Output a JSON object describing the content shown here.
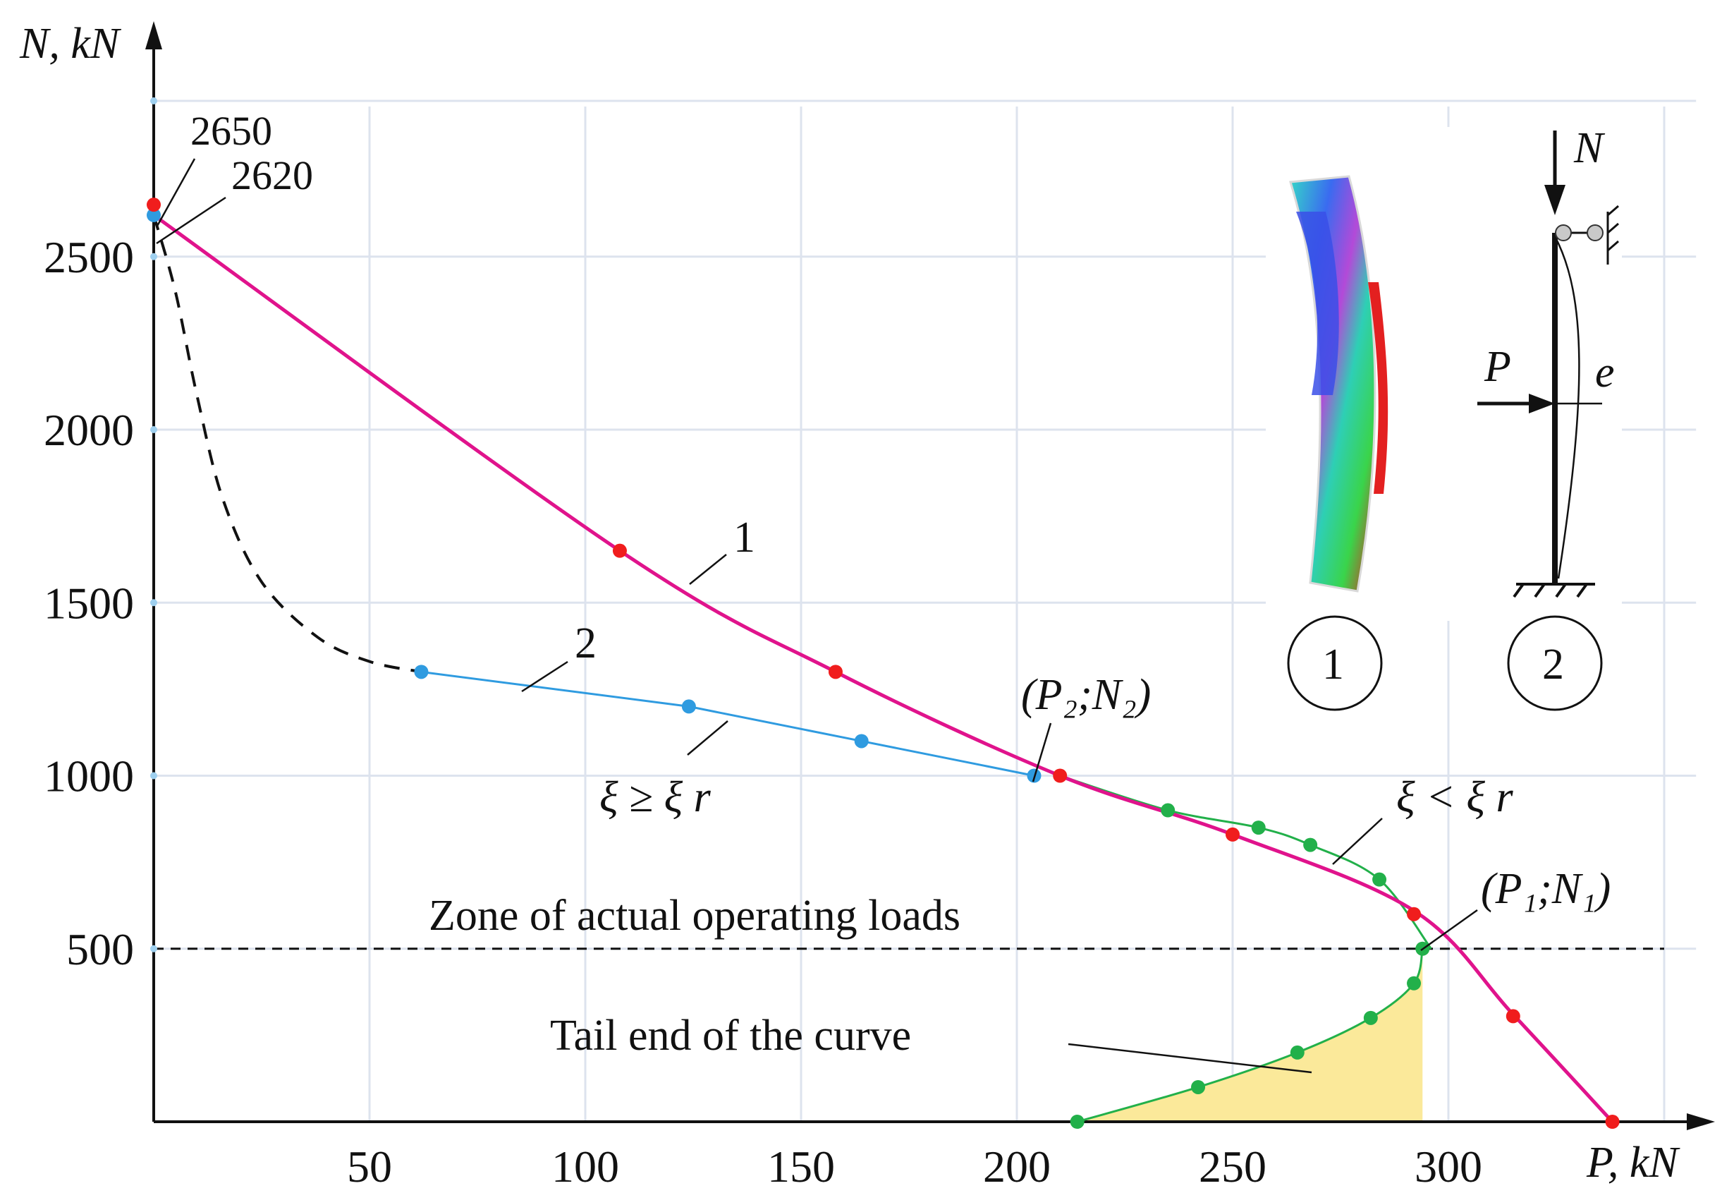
{
  "chart_data": {
    "type": "line",
    "xlabel": "P, kN",
    "ylabel": "N, kN",
    "xlim": [
      0,
      360
    ],
    "ylim": [
      0,
      2950
    ],
    "xticks": [
      50,
      100,
      150,
      200,
      250,
      300
    ],
    "yticks": [
      500,
      1000,
      1500,
      2000,
      2500
    ],
    "grid": true,
    "colors": {
      "curve1": "#e0138c",
      "curve1_points": "#f01d1d",
      "curve2": "#2f9be0",
      "green": "#22b04a",
      "dashed": "#111111",
      "zone_fill": "#fbe99a"
    },
    "series": [
      {
        "name": "1",
        "style": "pink-smooth",
        "points": [
          [
            0,
            2620
          ],
          [
            108,
            1650
          ],
          [
            158,
            1300
          ],
          [
            210,
            1000
          ],
          [
            250,
            830
          ],
          [
            292,
            610
          ],
          [
            315,
            310
          ],
          [
            338,
            0
          ]
        ],
        "markers": [
          [
            0,
            2650
          ],
          [
            108,
            1650
          ],
          [
            158,
            1300
          ],
          [
            210,
            1000
          ],
          [
            250,
            830
          ],
          [
            292,
            600
          ],
          [
            315,
            305
          ],
          [
            338,
            0
          ]
        ]
      },
      {
        "name": "2",
        "style": "blue",
        "points": [
          [
            62,
            1300
          ],
          [
            124,
            1200
          ],
          [
            164,
            1100
          ],
          [
            204,
            1000
          ]
        ],
        "markers": [
          [
            62,
            1300
          ],
          [
            124,
            1200
          ],
          [
            164,
            1100
          ],
          [
            204,
            1000
          ]
        ]
      },
      {
        "name": "dashed",
        "style": "dashed",
        "points": [
          [
            0,
            2620
          ],
          [
            5,
            2400
          ],
          [
            10,
            2100
          ],
          [
            16,
            1800
          ],
          [
            25,
            1560
          ],
          [
            38,
            1400
          ],
          [
            50,
            1330
          ],
          [
            62,
            1300
          ]
        ],
        "markers": [
          [
            0,
            2620
          ]
        ]
      },
      {
        "name": "green-upper",
        "style": "green",
        "points": [
          [
            210,
            1000
          ],
          [
            235,
            900
          ],
          [
            256,
            850
          ],
          [
            268,
            800
          ],
          [
            284,
            700
          ],
          [
            296,
            500
          ]
        ],
        "markers": [
          [
            235,
            900
          ],
          [
            256,
            850
          ],
          [
            268,
            800
          ],
          [
            284,
            700
          ],
          [
            294,
            500
          ]
        ]
      },
      {
        "name": "green-tail",
        "style": "green",
        "points": [
          [
            214,
            0
          ],
          [
            242,
            100
          ],
          [
            265,
            200
          ],
          [
            282,
            300
          ],
          [
            292,
            400
          ],
          [
            294,
            500
          ]
        ],
        "markers": [
          [
            214,
            0
          ],
          [
            242,
            100
          ],
          [
            265,
            200
          ],
          [
            282,
            300
          ],
          [
            292,
            400
          ]
        ]
      }
    ],
    "zone_line_y": 500,
    "annotations": {
      "v2650": "2650",
      "v2620": "2620",
      "curve1": "1",
      "curve2": "2",
      "p2n2": "(P₂;N₂)",
      "p1n1": "(P₁;N₁)",
      "xi_ge": "ξ ≥ ξ r",
      "xi_lt": "ξ < ξ r",
      "zone": "Zone of actual operating loads",
      "tail": "Tail end of the curve",
      "inset1": "1",
      "inset2": "2",
      "scheme_N": "N",
      "scheme_P": "P",
      "scheme_e": "e"
    }
  }
}
